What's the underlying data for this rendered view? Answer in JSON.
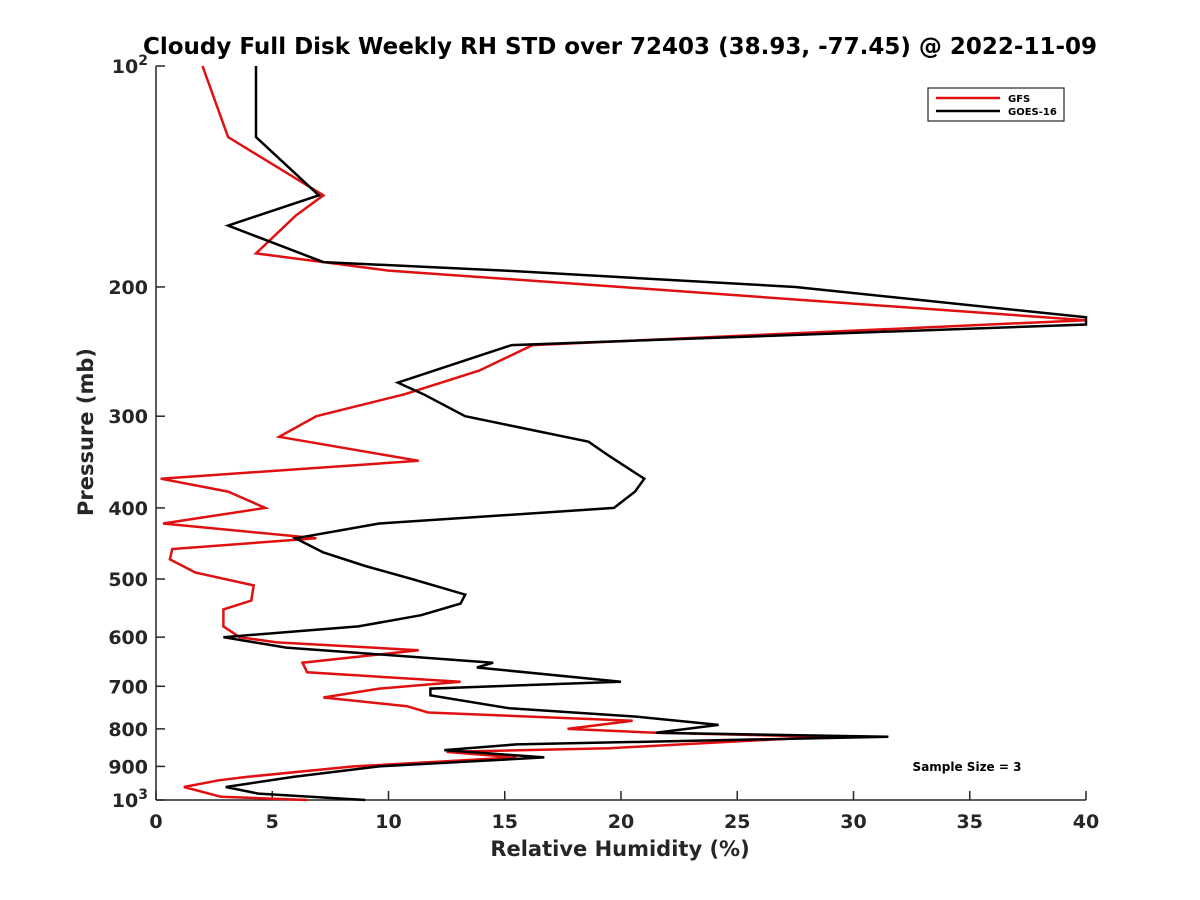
{
  "chart_data": {
    "type": "line",
    "title": "Cloudy Full Disk Weekly RH STD over 72403 (38.93, -77.45) @ 2022-11-09",
    "xlabel": "Relative Humidity (%)",
    "ylabel": "Pressure (mb)",
    "xlim": [
      0,
      40
    ],
    "ylim": [
      100,
      1000
    ],
    "y_scale": "log",
    "y_reversed": true,
    "grid": false,
    "legend_position": "top-right",
    "x_ticks": [
      "0",
      "5",
      "10",
      "15",
      "20",
      "25",
      "30",
      "35",
      "40"
    ],
    "y_ticks": [
      {
        "value": 100,
        "base": "10",
        "exp": "2"
      },
      {
        "value": 200,
        "label": "200"
      },
      {
        "value": 300,
        "label": "300"
      },
      {
        "value": 400,
        "label": "400"
      },
      {
        "value": 500,
        "label": "500"
      },
      {
        "value": 600,
        "label": "600"
      },
      {
        "value": 700,
        "label": "700"
      },
      {
        "value": 800,
        "label": "800"
      },
      {
        "value": 900,
        "label": "900"
      },
      {
        "value": 1000,
        "base": "10",
        "exp": "3"
      }
    ],
    "annotation": "Sample Size = 3",
    "series": [
      {
        "name": "GFS",
        "color": "#e01010",
        "points": [
          [
            2.0,
            100
          ],
          [
            3.1,
            125
          ],
          [
            7.2,
            150
          ],
          [
            6.0,
            160
          ],
          [
            4.3,
            180
          ],
          [
            7.2,
            185
          ],
          [
            10.0,
            190
          ],
          [
            20.0,
            200
          ],
          [
            40.0,
            222
          ],
          [
            16.2,
            240
          ],
          [
            13.9,
            260
          ],
          [
            10.7,
            280
          ],
          [
            6.9,
            300
          ],
          [
            5.3,
            320
          ],
          [
            11.3,
            345
          ],
          [
            0.2,
            365
          ],
          [
            3.1,
            380
          ],
          [
            4.7,
            400
          ],
          [
            0.3,
            420
          ],
          [
            6.9,
            440
          ],
          [
            0.7,
            455
          ],
          [
            0.6,
            470
          ],
          [
            1.7,
            490
          ],
          [
            4.2,
            510
          ],
          [
            4.1,
            535
          ],
          [
            2.9,
            550
          ],
          [
            2.9,
            580
          ],
          [
            3.6,
            600
          ],
          [
            5.2,
            610
          ],
          [
            11.3,
            625
          ],
          [
            6.3,
            650
          ],
          [
            6.5,
            670
          ],
          [
            13.1,
            690
          ],
          [
            9.6,
            705
          ],
          [
            7.2,
            725
          ],
          [
            10.8,
            745
          ],
          [
            11.7,
            760
          ],
          [
            20.5,
            780
          ],
          [
            17.7,
            800
          ],
          [
            21.5,
            810
          ],
          [
            28.8,
            820
          ],
          [
            19.5,
            850
          ],
          [
            12.5,
            860
          ],
          [
            15.5,
            875
          ],
          [
            8.5,
            900
          ],
          [
            3.9,
            930
          ],
          [
            2.7,
            940
          ],
          [
            1.2,
            960
          ],
          [
            2.8,
            990
          ],
          [
            6.5,
            1000
          ]
        ]
      },
      {
        "name": "GOES-16",
        "color": "#000000",
        "points": [
          [
            4.3,
            100
          ],
          [
            4.3,
            125
          ],
          [
            7.0,
            150
          ],
          [
            3.1,
            165
          ],
          [
            7.2,
            185
          ],
          [
            15.0,
            190
          ],
          [
            27.5,
            200
          ],
          [
            40.0,
            220
          ],
          [
            40.0,
            225
          ],
          [
            15.3,
            240
          ],
          [
            10.4,
            270
          ],
          [
            11.5,
            280
          ],
          [
            13.3,
            300
          ],
          [
            18.6,
            325
          ],
          [
            19.5,
            340
          ],
          [
            21.0,
            365
          ],
          [
            20.6,
            380
          ],
          [
            19.7,
            400
          ],
          [
            9.6,
            420
          ],
          [
            6.0,
            440
          ],
          [
            7.2,
            460
          ],
          [
            9.0,
            480
          ],
          [
            11.0,
            500
          ],
          [
            13.3,
            525
          ],
          [
            13.1,
            540
          ],
          [
            11.4,
            560
          ],
          [
            8.7,
            580
          ],
          [
            2.9,
            600
          ],
          [
            5.6,
            620
          ],
          [
            14.5,
            650
          ],
          [
            13.8,
            660
          ],
          [
            20.0,
            690
          ],
          [
            11.8,
            705
          ],
          [
            11.8,
            720
          ],
          [
            15.2,
            750
          ],
          [
            20.7,
            770
          ],
          [
            24.2,
            790
          ],
          [
            21.5,
            810
          ],
          [
            31.5,
            820
          ],
          [
            15.5,
            840
          ],
          [
            12.4,
            855
          ],
          [
            16.7,
            875
          ],
          [
            9.6,
            900
          ],
          [
            5.9,
            930
          ],
          [
            3.0,
            960
          ],
          [
            4.4,
            980
          ],
          [
            9.0,
            1000
          ]
        ]
      }
    ]
  }
}
